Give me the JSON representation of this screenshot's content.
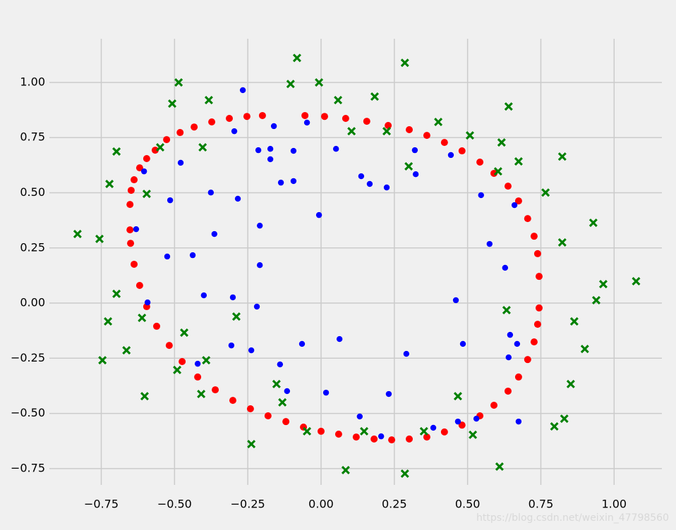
{
  "chart_data": {
    "type": "scatter",
    "xlim": [
      -0.927,
      1.163
    ],
    "ylim": [
      -0.824,
      1.198
    ],
    "xticks": [
      {
        "value": -0.75,
        "label": "−0.75"
      },
      {
        "value": -0.5,
        "label": "−0.50"
      },
      {
        "value": -0.25,
        "label": "−0.25"
      },
      {
        "value": 0,
        "label": "0.00"
      },
      {
        "value": 0.25,
        "label": "0.25"
      },
      {
        "value": 0.5,
        "label": "0.50"
      },
      {
        "value": 0.75,
        "label": "0.75"
      },
      {
        "value": 1,
        "label": "1.00"
      }
    ],
    "yticks": [
      {
        "value": -0.75,
        "label": "−0.75"
      },
      {
        "value": -0.5,
        "label": "−0.50"
      },
      {
        "value": -0.25,
        "label": "−0.25"
      },
      {
        "value": 0,
        "label": "0.00"
      },
      {
        "value": 0.25,
        "label": "0.25"
      },
      {
        "value": 0.5,
        "label": "0.50"
      },
      {
        "value": 0.75,
        "label": "0.75"
      },
      {
        "value": 1,
        "label": "1.00"
      }
    ],
    "grid": true,
    "series": [
      {
        "color": "#ff0000",
        "marker": "o",
        "x": [
          -0.652,
          -0.648,
          -0.638,
          -0.619,
          -0.595,
          -0.566,
          -0.527,
          -0.481,
          -0.433,
          -0.373,
          -0.313,
          -0.253,
          -0.2,
          -0.055,
          0.012,
          0.084,
          0.156,
          0.229,
          0.301,
          0.361,
          0.421,
          0.481,
          0.542,
          0.59,
          0.638,
          0.674,
          0.705,
          0.727,
          0.739,
          0.744,
          0.744,
          0.739,
          0.727,
          0.705,
          0.674,
          0.638,
          0.59,
          0.542,
          0.481,
          0.421,
          0.361,
          0.301,
          0.241,
          0.181,
          0.12,
          0.06,
          0.0,
          -0.06,
          -0.12,
          -0.181,
          -0.241,
          -0.301,
          -0.361,
          -0.421,
          -0.474,
          -0.518,
          -0.561,
          -0.595,
          -0.619,
          -0.638,
          -0.65,
          -0.652
        ],
        "values": [
          0.447,
          0.511,
          0.559,
          0.613,
          0.655,
          0.693,
          0.741,
          0.773,
          0.798,
          0.821,
          0.837,
          0.846,
          0.85,
          0.85,
          0.846,
          0.837,
          0.824,
          0.805,
          0.786,
          0.76,
          0.728,
          0.69,
          0.639,
          0.588,
          0.53,
          0.463,
          0.383,
          0.303,
          0.224,
          0.121,
          -0.022,
          -0.096,
          -0.176,
          -0.256,
          -0.335,
          -0.399,
          -0.463,
          -0.511,
          -0.553,
          -0.584,
          -0.607,
          -0.616,
          -0.62,
          -0.616,
          -0.607,
          -0.594,
          -0.581,
          -0.562,
          -0.537,
          -0.511,
          -0.479,
          -0.441,
          -0.393,
          -0.335,
          -0.265,
          -0.192,
          -0.105,
          -0.016,
          0.08,
          0.176,
          0.271,
          0.332
        ]
      },
      {
        "color": "#0000ff",
        "marker": "o",
        "x": [
          -0.267,
          -0.296,
          -0.161,
          -0.048,
          -0.214,
          -0.173,
          -0.094,
          0.051,
          -0.173,
          -0.479,
          -0.604,
          -0.137,
          -0.094,
          0.137,
          0.166,
          0.224,
          0.323,
          0.32,
          0.443,
          0.546,
          -0.007,
          -0.515,
          -0.376,
          -0.284,
          -0.209,
          -0.364,
          -0.631,
          -0.525,
          -0.438,
          0.575,
          0.628,
          -0.209,
          0.66,
          -0.4,
          -0.301,
          -0.592,
          -0.219,
          0.46,
          -0.065,
          0.063,
          -0.306,
          -0.238,
          0.291,
          0.484,
          0.645,
          0.64,
          0.669,
          -0.421,
          -0.14,
          -0.116,
          0.017,
          0.231,
          0.132,
          0.205,
          0.383,
          0.467,
          0.53,
          0.674
        ],
        "values": [
          0.965,
          0.779,
          0.802,
          0.818,
          0.693,
          0.699,
          0.69,
          0.699,
          0.652,
          0.636,
          0.597,
          0.546,
          0.553,
          0.575,
          0.54,
          0.524,
          0.584,
          0.693,
          0.671,
          0.489,
          0.399,
          0.466,
          0.501,
          0.473,
          0.351,
          0.313,
          0.335,
          0.211,
          0.217,
          0.268,
          0.16,
          0.172,
          0.444,
          0.035,
          0.026,
          0.003,
          -0.016,
          0.013,
          -0.185,
          -0.163,
          -0.192,
          -0.214,
          -0.23,
          -0.185,
          -0.144,
          -0.246,
          -0.185,
          -0.275,
          -0.278,
          -0.399,
          -0.406,
          -0.412,
          -0.514,
          -0.604,
          -0.565,
          -0.537,
          -0.524,
          -0.537
        ]
      },
      {
        "color": "#008000",
        "marker": "X",
        "x": [
          -0.082,
          0.286,
          -0.486,
          -0.007,
          -0.104,
          -0.383,
          0.058,
          0.183,
          -0.508,
          0.64,
          0.4,
          0.104,
          0.224,
          0.508,
          0.616,
          -0.404,
          -0.549,
          -0.698,
          0.823,
          0.674,
          0.299,
          0.604,
          -0.722,
          -0.595,
          0.766,
          -0.831,
          -0.756,
          0.929,
          0.823,
          1.075,
          0.963,
          0.939,
          -0.698,
          0.633,
          -0.289,
          -0.611,
          -0.727,
          0.864,
          -0.467,
          0.9,
          -0.664,
          -0.746,
          -0.392,
          -0.491,
          -0.152,
          0.852,
          -0.132,
          -0.409,
          -0.602,
          0.467,
          0.83,
          0.796,
          -0.048,
          0.351,
          0.147,
          0.518,
          -0.238,
          0.609,
          0.084,
          0.286
        ],
        "values": [
          1.111,
          1.089,
          1.0,
          1.0,
          0.993,
          0.92,
          0.92,
          0.936,
          0.904,
          0.891,
          0.821,
          0.779,
          0.779,
          0.76,
          0.728,
          0.706,
          0.706,
          0.687,
          0.664,
          0.642,
          0.62,
          0.597,
          0.54,
          0.495,
          0.501,
          0.313,
          0.291,
          0.364,
          0.275,
          0.099,
          0.086,
          0.013,
          0.042,
          -0.032,
          -0.061,
          -0.067,
          -0.083,
          -0.083,
          -0.134,
          -0.208,
          -0.214,
          -0.259,
          -0.259,
          -0.303,
          -0.367,
          -0.367,
          -0.45,
          -0.412,
          -0.422,
          -0.422,
          -0.524,
          -0.559,
          -0.581,
          -0.581,
          -0.581,
          -0.597,
          -0.639,
          -0.741,
          -0.757,
          -0.773
        ]
      }
    ],
    "watermark": "https://blog.csdn.net/weixin_47798560"
  }
}
